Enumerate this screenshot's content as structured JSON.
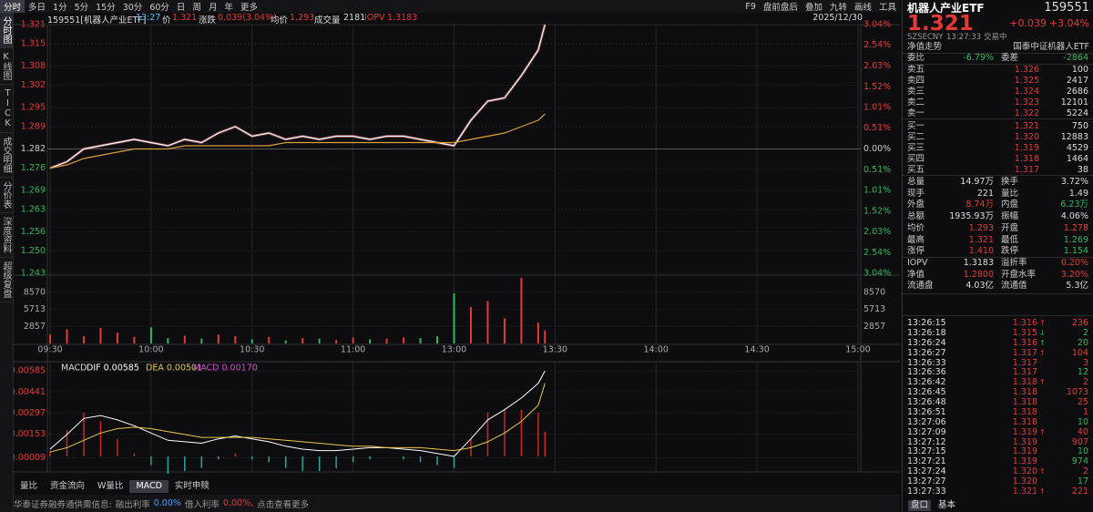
{
  "sidebar": [
    "分时图",
    "K线图",
    "TICK",
    "成交明细",
    "分价表",
    "深度资料",
    "超级复盘"
  ],
  "toolbar": {
    "tabs": [
      "分时",
      "多日",
      "1分",
      "5分",
      "15分",
      "30分",
      "60分",
      "日",
      "周",
      "月",
      "年",
      "更多"
    ],
    "active": 0,
    "right": [
      "F9",
      "盘前盘后",
      "叠加",
      "九转",
      "画线",
      "工具"
    ]
  },
  "info": {
    "name": "159551[机器人产业ETF]",
    "time": "13:27",
    "price_label": "价",
    "price": "1.321",
    "change_label": "涨跌",
    "change": "0.039(3.04%)",
    "avg_label": "均价",
    "avg": "1.293",
    "vol_label": "成交量",
    "vol": "2181",
    "iopv_label": "IOPV",
    "iopv": "1.3183",
    "date": "2025/12/30"
  },
  "chart": {
    "type": "line",
    "prev_close": 1.282,
    "xlim": [
      0,
      240
    ],
    "ylim": [
      1.243,
      1.321
    ],
    "y2lim": [
      -3.04,
      3.04
    ],
    "xticks": [
      {
        "value": 0,
        "label": "09:30"
      },
      {
        "value": 30,
        "label": "10:00"
      },
      {
        "value": 60,
        "label": "10:30"
      },
      {
        "value": 90,
        "label": "11:00"
      },
      {
        "value": 120,
        "label": "13:00"
      },
      {
        "value": 150,
        "label": "13:30"
      },
      {
        "value": 180,
        "label": "14:00"
      },
      {
        "value": 210,
        "label": "14:30"
      },
      {
        "value": 240,
        "label": "15:00"
      }
    ],
    "yticks": [
      1.321,
      1.315,
      1.308,
      1.302,
      1.295,
      1.289,
      1.282,
      1.276,
      1.269,
      1.263,
      1.256,
      {
        "value": 1.25,
        "label": "1.250"
      },
      1.243
    ],
    "y2ticks": [
      {
        "value": 3.04,
        "label": "3.04%"
      },
      {
        "value": 2.54,
        "label": "2.54%"
      },
      {
        "value": 2.03,
        "label": "2.03%"
      },
      {
        "value": 1.52,
        "label": "1.52%"
      },
      {
        "value": 1.01,
        "label": "1.01%"
      },
      {
        "value": 0.51,
        "label": "0.51%"
      },
      {
        "value": 0,
        "label": "0.00%"
      },
      {
        "value": -0.51,
        "label": "0.51%"
      },
      {
        "value": -1.01,
        "label": "1.01%"
      },
      {
        "value": -1.52,
        "label": "1.52%"
      },
      {
        "value": -2.03,
        "label": "2.03%"
      },
      {
        "value": -2.54,
        "label": "2.54%"
      },
      {
        "value": -3.04,
        "label": "3.04%"
      }
    ],
    "x": [
      0,
      5,
      10,
      15,
      20,
      25,
      30,
      35,
      40,
      45,
      50,
      55,
      60,
      65,
      70,
      75,
      80,
      85,
      90,
      95,
      100,
      105,
      110,
      115,
      120,
      125,
      130,
      135,
      140,
      145,
      147
    ],
    "series": [
      {
        "color": "#ffffff",
        "values": [
          1.276,
          1.278,
          1.282,
          1.283,
          1.284,
          1.285,
          1.284,
          1.283,
          1.285,
          1.284,
          1.287,
          1.289,
          1.286,
          1.287,
          1.285,
          1.286,
          1.285,
          1.286,
          1.286,
          1.285,
          1.286,
          1.286,
          1.285,
          1.284,
          1.283,
          1.291,
          1.297,
          1.298,
          1.305,
          1.313,
          1.321
        ]
      },
      {
        "color": "#d9a03c",
        "values": [
          1.276,
          1.277,
          1.279,
          1.28,
          1.281,
          1.282,
          1.282,
          1.282,
          1.283,
          1.283,
          1.283,
          1.283,
          1.283,
          1.283,
          1.284,
          1.284,
          1.284,
          1.284,
          1.284,
          1.284,
          1.284,
          1.284,
          1.284,
          1.284,
          1.284,
          1.285,
          1.286,
          1.287,
          1.289,
          1.291,
          1.293
        ]
      }
    ]
  },
  "volume": {
    "ylim": [
      0,
      11000
    ],
    "yticks": [
      8570,
      5713,
      2857
    ],
    "up_color": "#e53935",
    "down_color": "#2eb85c",
    "values": [
      1500,
      2400,
      1200,
      2600,
      1800,
      1100,
      2700,
      900,
      1300,
      800,
      1500,
      1200,
      700,
      1100,
      500,
      900,
      800,
      600,
      1000,
      700,
      800,
      1000,
      900,
      1200,
      8400,
      6100,
      7100,
      4200,
      11000,
      3500,
      2181
    ]
  },
  "macd": {
    "title": "MACD",
    "dif_label": "DIF 0.00585",
    "dea_label": "DEA 0.00501",
    "macd_label": "MACD 0.00170",
    "ylim": [
      -0.001,
      0.0063
    ],
    "yticks": [
      0.00585,
      0.00441,
      0.00297,
      0.00153,
      -9e-05
    ],
    "up_color": "#c62828",
    "down_color": "#26a69a",
    "dif": {
      "color": "#ffffff",
      "values": [
        0.0005,
        0.0015,
        0.0026,
        0.0028,
        0.0025,
        0.0021,
        0.0016,
        0.0011,
        0.001,
        0.0009,
        0.0012,
        0.0014,
        0.0012,
        0.001,
        0.0007,
        0.0005,
        0.0004,
        0.0004,
        0.0005,
        0.0006,
        0.0006,
        0.0005,
        0.0004,
        0.0002,
        0,
        0.0012,
        0.0025,
        0.0032,
        0.004,
        0.005,
        0.00585
      ]
    },
    "dea": {
      "color": "#e6c84a",
      "values": [
        0.0003,
        0.0006,
        0.0011,
        0.0016,
        0.0019,
        0.002,
        0.0019,
        0.0017,
        0.0015,
        0.0013,
        0.0013,
        0.0013,
        0.0013,
        0.0012,
        0.0011,
        0.001,
        0.0009,
        0.0008,
        0.0007,
        0.0007,
        0.0006,
        0.0006,
        0.0006,
        0.0005,
        0.0004,
        0.0006,
        0.001,
        0.0016,
        0.0024,
        0.0035,
        0.00501
      ]
    },
    "hist": [
      0.0004,
      0.0018,
      0.003,
      0.0024,
      0.0012,
      0.0002,
      -0.0006,
      -0.0012,
      -0.001,
      -0.0008,
      -0.0002,
      0.0002,
      -0.0002,
      -0.0004,
      -0.0008,
      -0.001,
      -0.001,
      -0.0008,
      -0.0004,
      -0.0002,
      0,
      -0.0002,
      -0.0004,
      -0.0006,
      -0.0008,
      0.0012,
      0.003,
      0.0032,
      0.0032,
      0.003,
      0.0017
    ]
  },
  "bottom_tabs": {
    "tabs": [
      "量比",
      "资金流向",
      "W量比",
      "MACD",
      "实时申赎"
    ],
    "active": 3
  },
  "status": [
    {
      "text": "华泰证券融券通供需信息:",
      "color": "#999"
    },
    {
      "text": "融出利率",
      "color": "#999"
    },
    {
      "text": "0.00%",
      "color": "#4a9eff"
    },
    {
      "text": "借入利率",
      "color": "#999"
    },
    {
      "text": "0.00%,",
      "color": "#e53935"
    },
    {
      "text": "点击查看更多",
      "color": "#999"
    }
  ],
  "quote": {
    "name": "机器人产业ETF",
    "code": "159551",
    "price": "1.321",
    "change": "+0.039",
    "pct": "+3.04%",
    "exchange": "SZSE",
    "currency": "CNY",
    "time": "13:27:33",
    "state": "交易中",
    "nav_link": "净值走势",
    "index_name": "国泰中证机器人ETF",
    "ratio_label": "委比",
    "ratio": "-6.79%",
    "diff_label": "委差",
    "diff": "-2864",
    "book": [
      [
        "卖五",
        "1.326",
        "100"
      ],
      [
        "卖四",
        "1.325",
        "2417"
      ],
      [
        "卖三",
        "1.324",
        "2686"
      ],
      [
        "卖二",
        "1.323",
        "12101"
      ],
      [
        "卖一",
        "1.322",
        "5224"
      ],
      [
        "买一",
        "1.321",
        "750"
      ],
      [
        "买二",
        "1.320",
        "12883"
      ],
      [
        "买三",
        "1.319",
        "4529"
      ],
      [
        "买四",
        "1.318",
        "1464"
      ],
      [
        "买五",
        "1.317",
        "38"
      ]
    ],
    "stats": [
      {
        "l1": "总量",
        "v1": "14.97万",
        "c1": "#ddd",
        "l2": "换手",
        "v2": "3.72%",
        "c2": "#ddd"
      },
      {
        "l1": "现手",
        "v1": "221",
        "c1": "#ddd",
        "l2": "量比",
        "v2": "1.49",
        "c2": "#ddd"
      },
      {
        "l1": "外盘",
        "v1": "8.74万",
        "c1": "#e53935",
        "l2": "内盘",
        "v2": "6.23万",
        "c2": "#2eb85c"
      },
      {
        "l1": "总额",
        "v1": "1935.93万",
        "c1": "#ddd",
        "l2": "振幅",
        "v2": "4.06%",
        "c2": "#ddd"
      },
      {
        "l1": "均价",
        "v1": "1.293",
        "c1": "#e53935",
        "l2": "开盘",
        "v2": "1.278",
        "c2": "#e53935"
      },
      {
        "l1": "最高",
        "v1": "1.321",
        "c1": "#e53935",
        "l2": "最低",
        "v2": "1.269",
        "c2": "#2eb85c"
      },
      {
        "l1": "涨停",
        "v1": "1.410",
        "c1": "#e53935",
        "l2": "跌停",
        "v2": "1.154",
        "c2": "#2eb85c"
      },
      {
        "l1": "IOPV",
        "v1": "1.3183",
        "c1": "#ddd",
        "l2": "溢折率",
        "v2": "0.20%",
        "c2": "#e53935"
      },
      {
        "l1": "净值",
        "v1": "1.2800",
        "c1": "#e53935",
        "l2": "开盘水率",
        "v2": "3.20%",
        "c2": "#e53935"
      },
      {
        "l1": "流通盘",
        "v1": "4.03亿",
        "c1": "#ddd",
        "l2": "流通值",
        "v2": "5.3亿",
        "c2": "#ddd"
      }
    ],
    "trades": [
      {
        "time": "13:26:15",
        "price": "1.316",
        "arrow": "↑",
        "vol": "236",
        "color": "#e53935"
      },
      {
        "time": "13:26:18",
        "price": "1.315",
        "arrow": "↓",
        "vol": "2",
        "color": "#2eb85c"
      },
      {
        "time": "13:26:24",
        "price": "1.316",
        "arrow": "↑",
        "vol": "20",
        "color": "#2eb85c"
      },
      {
        "time": "13:26:27",
        "price": "1.317",
        "arrow": "↑",
        "vol": "104",
        "color": "#e53935"
      },
      {
        "time": "13:26:33",
        "price": "1.317",
        "arrow": null,
        "vol": "3",
        "color": "#e53935"
      },
      {
        "time": "13:26:36",
        "price": "1.317",
        "arrow": null,
        "vol": "12",
        "color": "#2eb85c"
      },
      {
        "time": "13:26:42",
        "price": "1.318",
        "arrow": "↑",
        "vol": "2",
        "color": "#e53935"
      },
      {
        "time": "13:26:45",
        "price": "1.318",
        "arrow": null,
        "vol": "1073",
        "color": "#e53935"
      },
      {
        "time": "13:26:48",
        "price": "1.318",
        "arrow": null,
        "vol": "25",
        "color": "#e53935"
      },
      {
        "time": "13:26:51",
        "price": "1.318",
        "arrow": null,
        "vol": "1",
        "color": "#e53935"
      },
      {
        "time": "13:27:06",
        "price": "1.318",
        "arrow": null,
        "vol": "10",
        "color": "#2eb85c"
      },
      {
        "time": "13:27:09",
        "price": "1.319",
        "arrow": "↑",
        "vol": "40",
        "color": "#e53935"
      },
      {
        "time": "13:27:12",
        "price": "1.319",
        "arrow": null,
        "vol": "907",
        "color": "#e53935"
      },
      {
        "time": "13:27:15",
        "price": "1.319",
        "arrow": null,
        "vol": "10",
        "color": "#2eb85c"
      },
      {
        "time": "13:27:21",
        "price": "1.319",
        "arrow": null,
        "vol": "974",
        "color": "#2eb85c"
      },
      {
        "time": "13:27:24",
        "price": "1.320",
        "arrow": "↑",
        "vol": "2",
        "color": "#e53935"
      },
      {
        "time": "13:27:27",
        "price": "1.320",
        "arrow": null,
        "vol": "17",
        "color": "#2eb85c"
      },
      {
        "time": "13:27:33",
        "price": "1.321",
        "arrow": "↑",
        "vol": "221",
        "color": "#e53935"
      }
    ],
    "tabs": [
      "盘口",
      "基本"
    ],
    "active_tab": 0
  }
}
